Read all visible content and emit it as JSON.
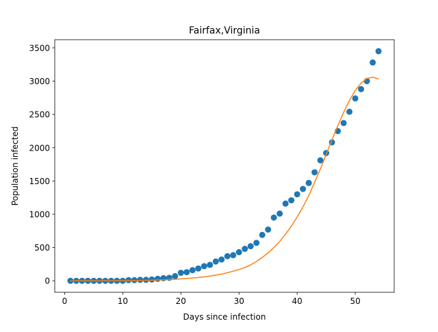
{
  "chart_data": {
    "type": "scatter",
    "title": "Fairfax,Virginia",
    "xlabel": "Days since infection",
    "ylabel": "Population infected",
    "xlim": [
      -1.7,
      56.7
    ],
    "ylim": [
      -172.5,
      3622.5
    ],
    "xticks": [
      0,
      10,
      20,
      30,
      40,
      50
    ],
    "yticks": [
      0,
      500,
      1000,
      1500,
      2000,
      2500,
      3000,
      3500
    ],
    "grid": false,
    "colors": {
      "observed": "#1f77b4",
      "fit": "#ff7f0e"
    },
    "series": [
      {
        "kind": "scatter",
        "x": [
          1,
          2,
          3,
          4,
          5,
          6,
          7,
          8,
          9,
          10,
          11,
          12,
          13,
          14,
          15,
          16,
          17,
          18,
          19,
          20,
          21,
          22,
          23,
          24,
          25,
          26,
          27,
          28,
          29,
          30,
          31,
          32,
          33,
          34,
          35,
          36,
          37,
          38,
          39,
          40,
          41,
          42,
          43,
          44,
          45,
          46,
          47,
          48,
          49,
          50,
          51,
          52,
          53,
          54
        ],
        "y": [
          0,
          0,
          0,
          0,
          0,
          0,
          0,
          0,
          0,
          0,
          10,
          10,
          15,
          15,
          20,
          30,
          40,
          45,
          70,
          120,
          130,
          160,
          185,
          220,
          240,
          290,
          320,
          370,
          385,
          430,
          480,
          520,
          570,
          690,
          770,
          950,
          1010,
          1160,
          1210,
          1300,
          1380,
          1470,
          1630,
          1810,
          1920,
          2080,
          2250,
          2370,
          2540,
          2740,
          2880,
          3000,
          3280,
          3450
        ]
      },
      {
        "kind": "line",
        "x": [
          1,
          2,
          3,
          4,
          5,
          6,
          7,
          8,
          9,
          10,
          11,
          12,
          13,
          14,
          15,
          16,
          17,
          18,
          19,
          20,
          21,
          22,
          23,
          24,
          25,
          26,
          27,
          28,
          29,
          30,
          31,
          32,
          33,
          34,
          35,
          36,
          37,
          38,
          39,
          40,
          41,
          42,
          43,
          44,
          45,
          46,
          47,
          48,
          49,
          50,
          51,
          52,
          53,
          54
        ],
        "y": [
          0,
          0,
          0,
          0,
          0,
          0,
          1,
          1,
          2,
          2,
          3,
          4,
          5,
          7,
          9,
          12,
          15,
          19,
          23,
          29,
          35,
          42,
          50,
          60,
          72,
          86,
          102,
          121,
          145,
          170,
          200,
          240,
          290,
          350,
          420,
          500,
          590,
          700,
          820,
          960,
          1110,
          1280,
          1480,
          1680,
          1900,
          2120,
          2330,
          2530,
          2710,
          2860,
          2970,
          3040,
          3060,
          3030
        ]
      }
    ]
  }
}
